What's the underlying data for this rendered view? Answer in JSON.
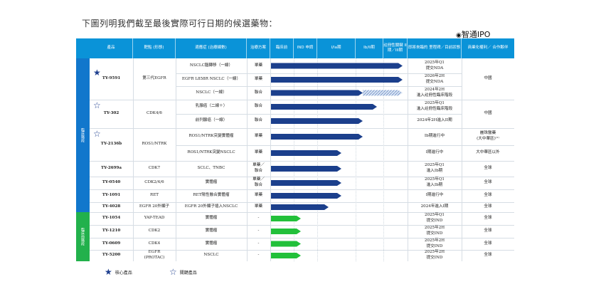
{
  "title": "下圖列明我們截至最後實際可行日期的候選藥物：",
  "brand": "智通IPO",
  "headers": [
    "產品",
    "靶點\n(形態)",
    "適應症\n(治療線數)",
    "治療方案",
    "臨床前",
    "IND\n申請",
    "I/Ia期",
    "Ib/II期",
    "註冊性關鍵\nII期／III期",
    "即將來臨的\n里程碑／目前狀態",
    "商業化權利／\n合作夥伴"
  ],
  "side_labels": [
    "臨床階段",
    "臨床前階段"
  ],
  "colors": {
    "header": "#0a93d8",
    "clinical": "#1177cc",
    "preclinical": "#22b14c",
    "bar_blue": "#1b3f8c",
    "bar_green": "#22c03a",
    "star": "#1e3f8f"
  },
  "products": [
    {
      "name": "TY-9591",
      "target": "第三代EGFR",
      "star": "filled"
    },
    {
      "name": "TY-302",
      "target": "CDK4/6",
      "star": "outline"
    },
    {
      "name": "TY-2136b",
      "target": "ROS1/NTRK",
      "star": "outline"
    },
    {
      "name": "TY-2699a",
      "target": "CDK7",
      "star": ""
    },
    {
      "name": "TY-0540",
      "target": "CDK2/4/6",
      "star": ""
    },
    {
      "name": "TY-1091",
      "target": "RET",
      "star": ""
    },
    {
      "name": "TY-4028",
      "target": "EGFR 20外顯子",
      "star": ""
    },
    {
      "name": "TY-1054",
      "target": "YAP-TEAD",
      "star": ""
    },
    {
      "name": "TY-1210",
      "target": "CDK2",
      "star": ""
    },
    {
      "name": "TY-0609",
      "target": "CDK4",
      "star": ""
    },
    {
      "name": "TY-5200",
      "target": "EGFR\n(PROTAC)",
      "star": ""
    }
  ],
  "rows": [
    {
      "indication": "NSCLC腦轉移（一線）",
      "regimen": "單藥",
      "stage": "II/III",
      "status": "2025年Q1\n提交NDA"
    },
    {
      "indication": "EGFR L858R NSCLC（一線）",
      "regimen": "單藥",
      "stage": "II/III",
      "status": "2026年2H\n提交NDA"
    },
    {
      "indication": "NSCLC（一線）",
      "regimen": "聯合",
      "stage": "Ib/II",
      "status": "2024年2H\n進入註冊性臨床階段"
    },
    {
      "indication": "乳腺癌（二線＋）",
      "regimen": "聯合",
      "stage": "II/III-",
      "status": "2025年Q1\n進入註冊性臨床階段"
    },
    {
      "indication": "前列腺癌（一線）",
      "regimen": "聯合",
      "stage": "Ib/II",
      "status": "2024年2H進入II期"
    },
    {
      "indication": "ROS1/NTRK突變實體瘤",
      "regimen": "單藥",
      "stage": "Ib/II",
      "status": "Ib期進行中"
    },
    {
      "indication": "ROS1/NTRK突變NSCLC",
      "regimen": "單藥",
      "stage": "I/Ia",
      "status": "I期進行中"
    },
    {
      "indication": "SCLC、TNBC",
      "regimen": "單藥／\n聯合",
      "stage": "I/Ia",
      "status": "2025年Q1\n進入Ib期"
    },
    {
      "indication": "實體瘤",
      "regimen": "單藥／\n聯合",
      "stage": "I/Ia",
      "status": "2025年Q1\n進入Ib期"
    },
    {
      "indication": "RET陽性融合實體瘤",
      "regimen": "單藥",
      "stage": "I/Ia",
      "status": "I期進行中"
    },
    {
      "indication": "EGFR 20外顯子插入NSCLC",
      "regimen": "單藥",
      "stage": "I/Ia-",
      "status": "2024年進入I期"
    },
    {
      "indication": "實體瘤",
      "regimen": "-",
      "stage": "IND",
      "status": "2025年Q1\n提交IND"
    },
    {
      "indication": "實體瘤",
      "regimen": "-",
      "stage": "IND",
      "status": "2025年2H\n提交IND"
    },
    {
      "indication": "實體瘤",
      "regimen": "-",
      "stage": "IND",
      "status": "2025年2H\n提交IND"
    },
    {
      "indication": "NSCLC",
      "regimen": "-",
      "stage": "IND",
      "status": "2025年2H\n提交IND"
    }
  ],
  "rights": [
    {
      "text": "中國"
    },
    {
      "text": "中國"
    },
    {
      "text": "麗珠醫藥\n(大中華區)⁽¹⁾"
    },
    {
      "text": "大中華區以外"
    },
    {
      "text": "全球"
    },
    {
      "text": "全球"
    },
    {
      "text": "全球"
    },
    {
      "text": "全球"
    },
    {
      "text": "全球"
    },
    {
      "text": "全球"
    },
    {
      "text": "全球"
    },
    {
      "text": "全球"
    }
  ],
  "legend": {
    "core": "核心產品",
    "key": "關鍵產品"
  }
}
